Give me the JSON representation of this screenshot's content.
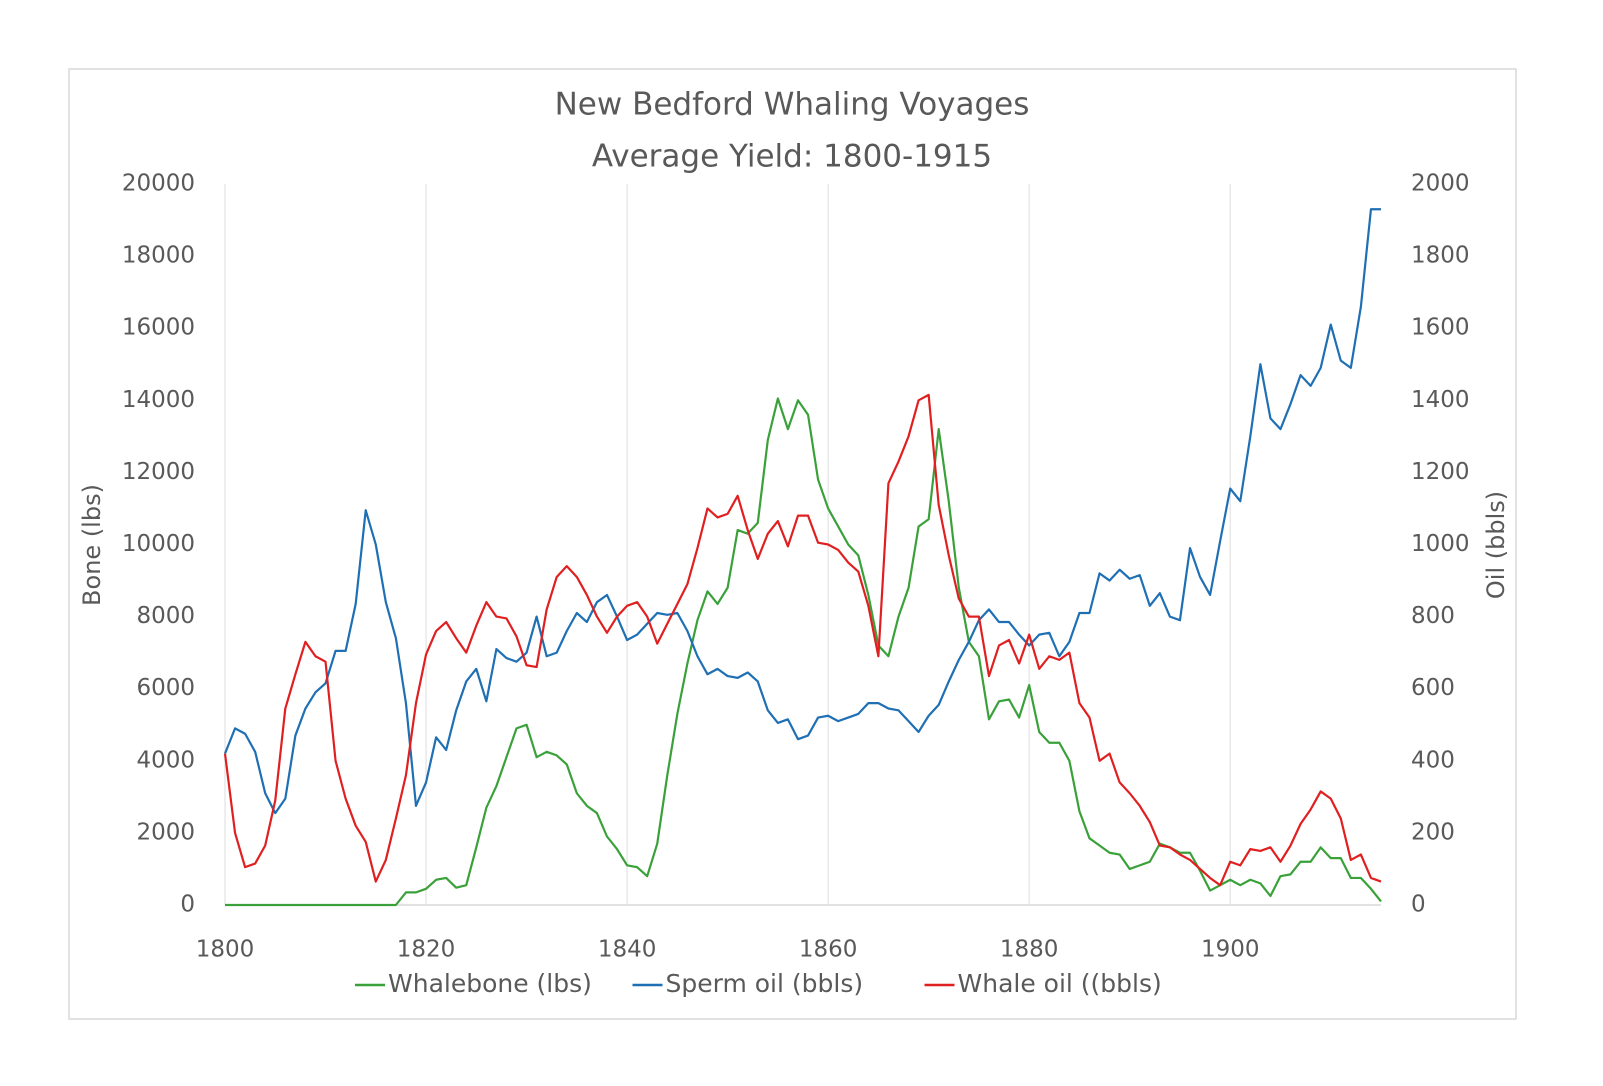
{
  "chart_data": {
    "type": "line",
    "title": "New Bedford Whaling Voyages",
    "subtitle": "Average Yield: 1800-1915",
    "ylabel": "Bone (lbs)",
    "y2label": "Oil (bbls)",
    "x": [
      1800,
      1801,
      1802,
      1803,
      1804,
      1805,
      1806,
      1807,
      1808,
      1809,
      1810,
      1811,
      1812,
      1813,
      1814,
      1815,
      1816,
      1817,
      1818,
      1819,
      1820,
      1821,
      1822,
      1823,
      1824,
      1825,
      1826,
      1827,
      1828,
      1829,
      1830,
      1831,
      1832,
      1833,
      1834,
      1835,
      1836,
      1837,
      1838,
      1839,
      1840,
      1841,
      1842,
      1843,
      1844,
      1845,
      1846,
      1847,
      1848,
      1849,
      1850,
      1851,
      1852,
      1853,
      1854,
      1855,
      1856,
      1857,
      1858,
      1859,
      1860,
      1861,
      1862,
      1863,
      1864,
      1865,
      1866,
      1867,
      1868,
      1869,
      1870,
      1871,
      1872,
      1873,
      1874,
      1875,
      1876,
      1877,
      1878,
      1879,
      1880,
      1881,
      1882,
      1883,
      1884,
      1885,
      1886,
      1887,
      1888,
      1889,
      1890,
      1891,
      1892,
      1893,
      1894,
      1895,
      1896,
      1897,
      1898,
      1899,
      1900,
      1901,
      1902,
      1903,
      1904,
      1905,
      1906,
      1907,
      1908,
      1909,
      1910,
      1911,
      1912,
      1913,
      1914,
      1915
    ],
    "xlim": [
      1800,
      1915
    ],
    "xticks": [
      1800,
      1820,
      1840,
      1860,
      1880,
      1900
    ],
    "ylim": [
      0,
      20000
    ],
    "yticks": [
      0,
      2000,
      4000,
      6000,
      8000,
      10000,
      12000,
      14000,
      16000,
      18000,
      20000
    ],
    "y2lim": [
      0,
      2000
    ],
    "y2ticks": [
      0,
      200,
      400,
      600,
      800,
      1000,
      1200,
      1400,
      1600,
      1800,
      2000
    ],
    "grid": true,
    "legend": "bottom",
    "series": [
      {
        "name": "Whalebone (lbs)",
        "color": "#3aa13a",
        "axis": "y",
        "values": [
          0,
          0,
          0,
          0,
          0,
          0,
          0,
          0,
          0,
          0,
          0,
          0,
          0,
          0,
          0,
          0,
          0,
          0,
          350,
          350,
          450,
          700,
          750,
          480,
          550,
          1600,
          2700,
          3300,
          4100,
          4900,
          5000,
          4100,
          4250,
          4150,
          3900,
          3100,
          2750,
          2550,
          1900,
          1550,
          1100,
          1050,
          800,
          1700,
          3600,
          5300,
          6700,
          7900,
          8700,
          8350,
          8800,
          10400,
          10300,
          10600,
          12900,
          14050,
          13200,
          14000,
          13600,
          11800,
          11000,
          10500,
          10000,
          9700,
          8600,
          7200,
          6900,
          8000,
          8800,
          10500,
          10700,
          13200,
          11200,
          8800,
          7300,
          6900,
          5150,
          5650,
          5700,
          5200,
          6100,
          4800,
          4500,
          4500,
          4000,
          2600,
          1850,
          1650,
          1450,
          1400,
          1000,
          1100,
          1200,
          1700,
          1600,
          1450,
          1450,
          950,
          400,
          550,
          700,
          550,
          700,
          600,
          250,
          800,
          850,
          1200,
          1200,
          1600,
          1300,
          1300,
          750,
          750,
          450,
          100
        ]
      },
      {
        "name": "Sperm oil (bbls)",
        "color": "#1f6fb4",
        "axis": "y2",
        "values": [
          420,
          490,
          475,
          425,
          310,
          255,
          295,
          470,
          545,
          590,
          615,
          705,
          705,
          835,
          1095,
          1000,
          840,
          740,
          560,
          275,
          340,
          465,
          430,
          540,
          620,
          655,
          565,
          710,
          685,
          675,
          700,
          800,
          690,
          700,
          760,
          810,
          785,
          840,
          860,
          800,
          735,
          750,
          780,
          810,
          805,
          810,
          760,
          690,
          640,
          655,
          635,
          630,
          645,
          620,
          540,
          505,
          515,
          460,
          470,
          520,
          525,
          510,
          520,
          530,
          560,
          560,
          545,
          540,
          510,
          480,
          525,
          555,
          620,
          680,
          730,
          790,
          820,
          785,
          785,
          750,
          720,
          750,
          755,
          690,
          730,
          810,
          810,
          920,
          900,
          930,
          905,
          915,
          830,
          865,
          800,
          790,
          990,
          910,
          860,
          1010,
          1155,
          1120,
          1300,
          1500,
          1350,
          1320,
          1390,
          1470,
          1440,
          1490,
          1610,
          1510,
          1490,
          1660,
          1930,
          1930
        ]
      },
      {
        "name": "Whale oil ((bbls)",
        "color": "#e02020",
        "axis": "y2",
        "values": [
          420,
          200,
          105,
          115,
          165,
          290,
          545,
          640,
          730,
          690,
          675,
          400,
          295,
          220,
          175,
          65,
          125,
          240,
          360,
          560,
          695,
          760,
          785,
          740,
          700,
          775,
          840,
          800,
          795,
          745,
          665,
          660,
          820,
          910,
          940,
          910,
          860,
          800,
          755,
          800,
          830,
          840,
          800,
          725,
          780,
          835,
          890,
          990,
          1100,
          1075,
          1085,
          1135,
          1040,
          960,
          1030,
          1065,
          995,
          1080,
          1080,
          1005,
          1000,
          985,
          950,
          925,
          830,
          690,
          1170,
          1230,
          1300,
          1400,
          1415,
          1110,
          970,
          850,
          800,
          800,
          635,
          720,
          735,
          670,
          750,
          655,
          690,
          680,
          700,
          560,
          520,
          400,
          420,
          340,
          310,
          275,
          230,
          165,
          160,
          140,
          125,
          100,
          75,
          55,
          120,
          110,
          155,
          150,
          160,
          120,
          165,
          225,
          265,
          315,
          295,
          240,
          125,
          140,
          75,
          65
        ]
      }
    ]
  }
}
